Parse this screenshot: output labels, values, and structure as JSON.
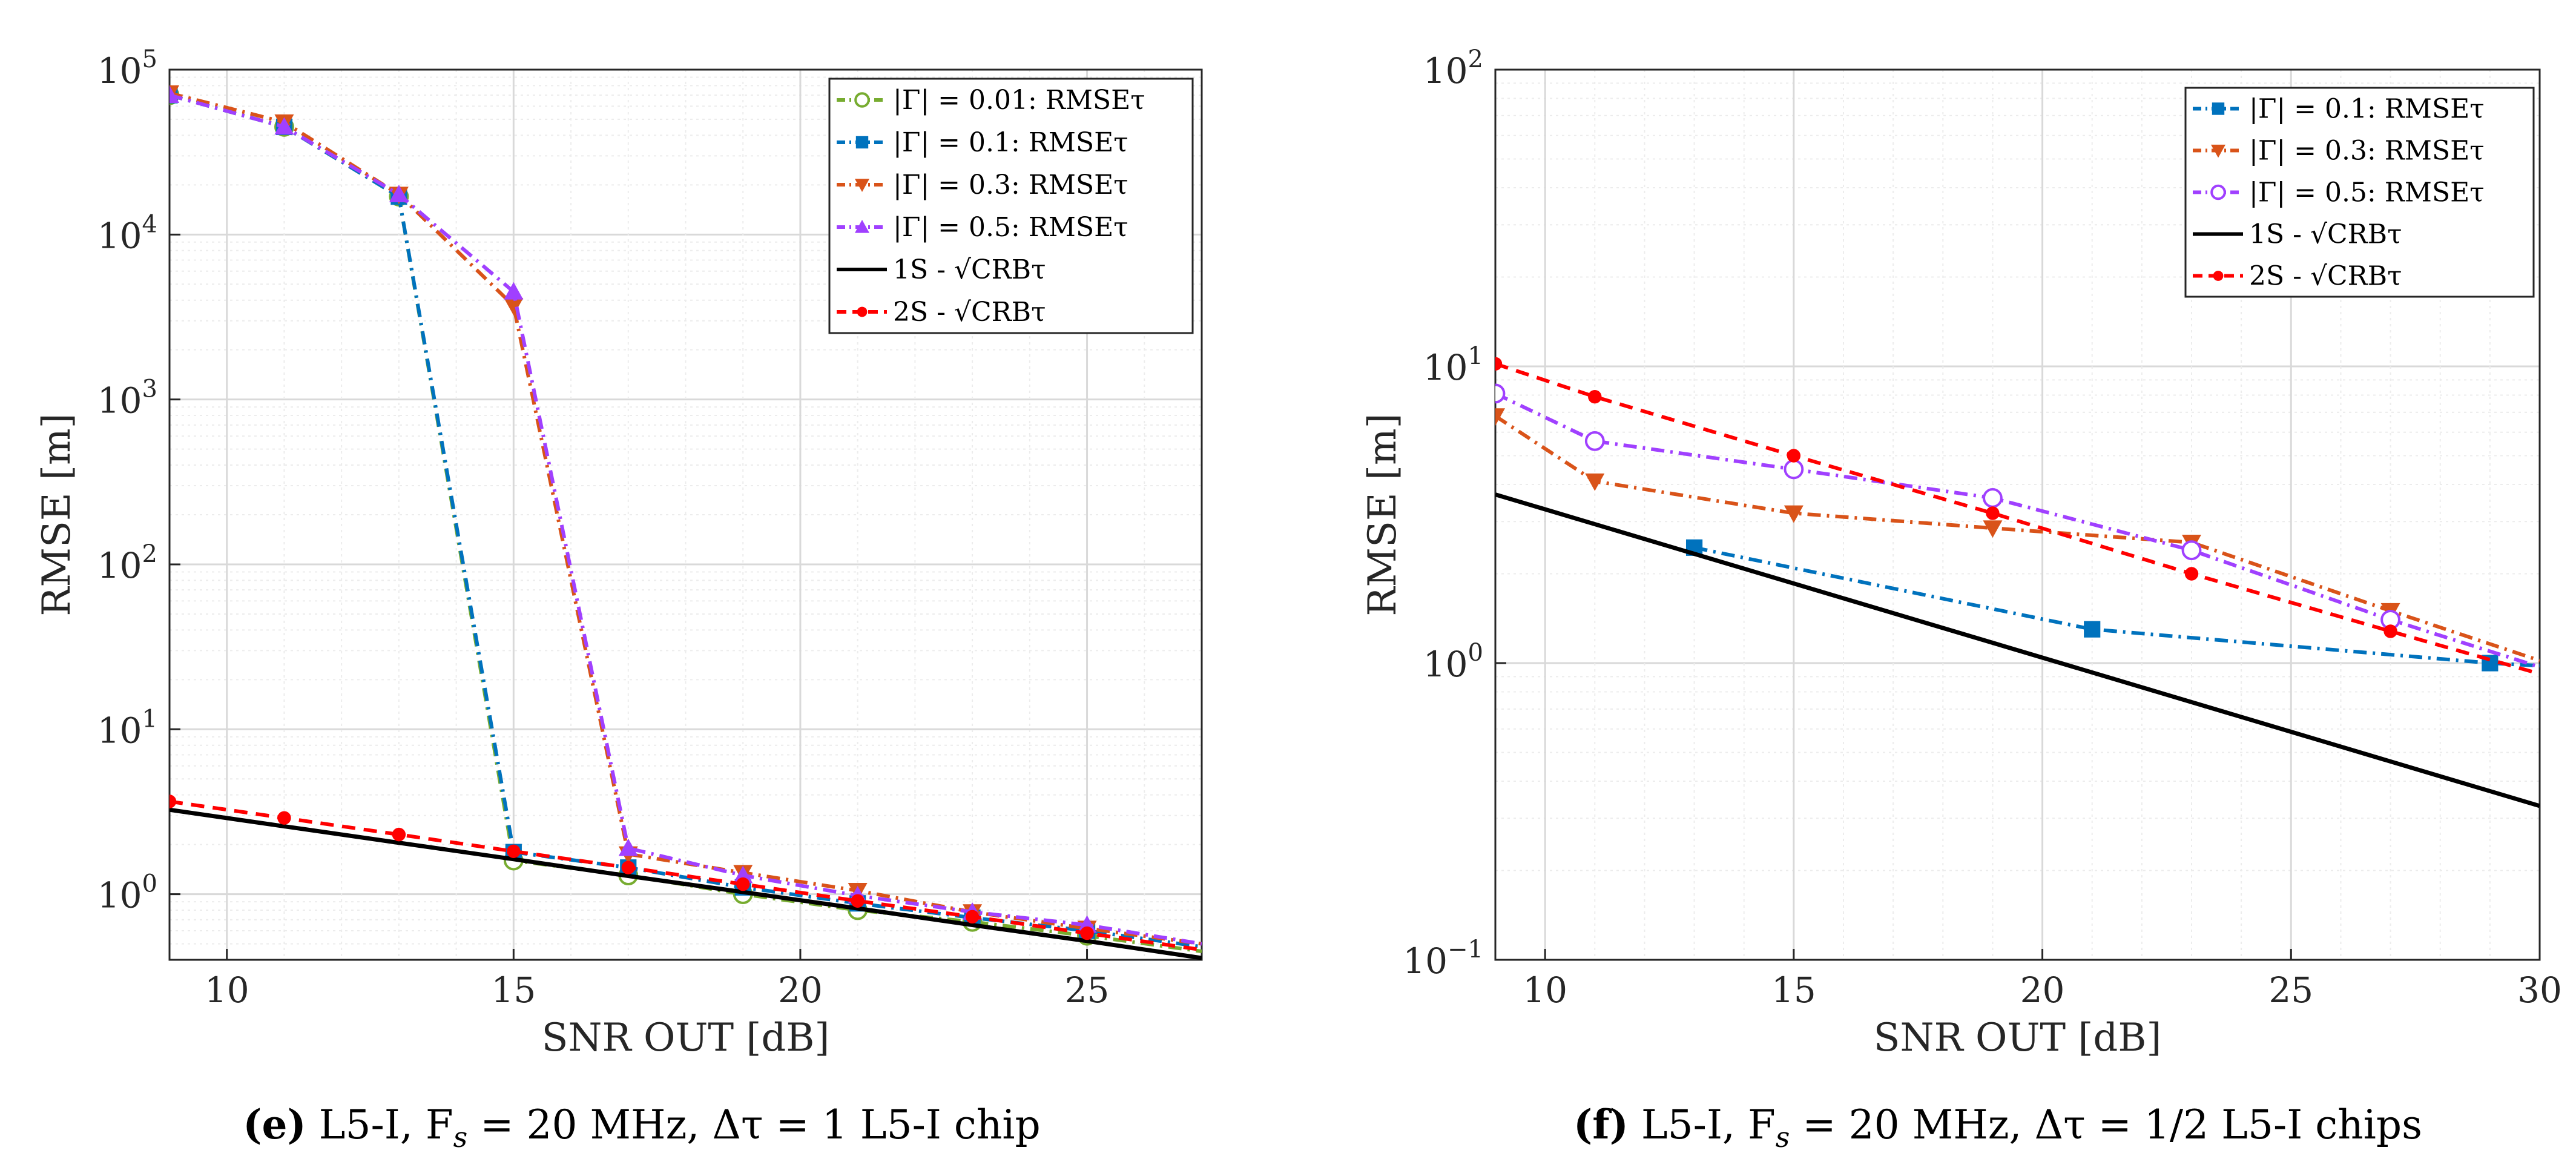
{
  "chart_data": [
    {
      "type": "line",
      "xscale": "linear",
      "yscale": "log",
      "xlim": [
        9,
        27
      ],
      "ylim": [
        0.4,
        100000
      ],
      "xticks": [
        10,
        15,
        20,
        25
      ],
      "yticks": [
        1,
        10,
        100,
        1000,
        10000,
        100000
      ],
      "ytick_labels": [
        {
          "base": "10",
          "exp": "0"
        },
        {
          "base": "10",
          "exp": "1"
        },
        {
          "base": "10",
          "exp": "2"
        },
        {
          "base": "10",
          "exp": "3"
        },
        {
          "base": "10",
          "exp": "4"
        },
        {
          "base": "10",
          "exp": "5"
        }
      ],
      "xlabel": "SNR OUT [dB]",
      "ylabel": "RMSE [m]",
      "grid": true,
      "legend_position": "top-right",
      "caption": {
        "letter": "(e)",
        "text": " L5-I, F",
        "sub": "s",
        "rest": " = 20 MHz, Δτ = 1 L5-I chip"
      },
      "series": [
        {
          "name": "|Γ| = 0.01:  RMSEτ",
          "color": "#77AC30",
          "dash": "dashdot",
          "marker": "circle-open",
          "x": [
            9,
            11,
            13,
            15,
            17,
            19,
            21,
            23,
            25,
            27
          ],
          "y": [
            70000,
            45000,
            17000,
            1.6,
            1.3,
            1.0,
            0.8,
            0.68,
            0.56,
            0.45
          ]
        },
        {
          "name": "|Γ| = 0.1:  RMSEτ",
          "color": "#0072BD",
          "dash": "dashdot",
          "marker": "square",
          "x": [
            9,
            11,
            13,
            15,
            17,
            19,
            21,
            23,
            25,
            27
          ],
          "y": [
            70000,
            45000,
            17000,
            1.8,
            1.45,
            1.1,
            0.88,
            0.72,
            0.6,
            0.48
          ]
        },
        {
          "name": "|Γ| = 0.3:  RMSEτ",
          "color": "#D95319",
          "dash": "dashdot",
          "marker": "triangle-down",
          "x": [
            9,
            11,
            13,
            15,
            17,
            19,
            21,
            23,
            25,
            27
          ],
          "y": [
            72000,
            48000,
            17500,
            3700,
            1.75,
            1.35,
            1.05,
            0.78,
            0.62,
            0.5
          ]
        },
        {
          "name": "|Γ| = 0.5:  RMSEτ",
          "color": "#A040FF",
          "dash": "dashdot",
          "marker": "triangle-up",
          "x": [
            9,
            11,
            13,
            15,
            17,
            19,
            21,
            23,
            25,
            27
          ],
          "y": [
            70000,
            45000,
            17500,
            4500,
            1.9,
            1.3,
            0.98,
            0.78,
            0.65,
            0.5
          ]
        },
        {
          "name": "1S - √CRBτ",
          "color": "#000000",
          "dash": "solid",
          "marker": "none",
          "x": [
            9,
            11,
            13,
            15,
            17,
            19,
            21,
            23,
            25,
            27
          ],
          "y": [
            3.25,
            2.58,
            2.05,
            1.63,
            1.29,
            1.03,
            0.82,
            0.65,
            0.52,
            0.41
          ]
        },
        {
          "name": "2S - √CRBτ",
          "color": "#FF0000",
          "dash": "dashed",
          "marker": "dot",
          "x": [
            9,
            11,
            13,
            15,
            17,
            19,
            21,
            23,
            25,
            27
          ],
          "y": [
            3.65,
            2.9,
            2.3,
            1.82,
            1.45,
            1.15,
            0.91,
            0.73,
            0.58,
            0.46
          ]
        }
      ]
    },
    {
      "type": "line",
      "xscale": "linear",
      "yscale": "log",
      "xlim": [
        9,
        30
      ],
      "ylim": [
        0.1,
        100
      ],
      "xticks": [
        10,
        15,
        20,
        25,
        30
      ],
      "yticks": [
        0.1,
        1,
        10,
        100
      ],
      "ytick_labels": [
        {
          "base": "10",
          "exp": "−1"
        },
        {
          "base": "10",
          "exp": "0"
        },
        {
          "base": "10",
          "exp": "1"
        },
        {
          "base": "10",
          "exp": "2"
        }
      ],
      "xlabel": "SNR OUT [dB]",
      "ylabel": "RMSE [m]",
      "grid": true,
      "legend_position": "top-right",
      "caption": {
        "letter": "(f)",
        "text": " L5-I, F",
        "sub": "s",
        "rest": " = 20 MHz, Δτ = 1/2 L5-I chips"
      },
      "series": [
        {
          "name": "|Γ| = 0.1:  RMSEτ",
          "color": "#0072BD",
          "dash": "dashdot",
          "marker": "square",
          "x": [
            13,
            21,
            29,
            30
          ],
          "y": [
            2.45,
            1.3,
            1.0,
            0.98
          ]
        },
        {
          "name": "|Γ| = 0.3:  RMSEτ",
          "color": "#D95319",
          "dash": "dashdot",
          "marker": "triangle-down",
          "x": [
            9,
            11,
            15,
            19,
            23,
            27,
            30
          ],
          "y": [
            6.8,
            4.1,
            3.2,
            2.85,
            2.55,
            1.5,
            1.02
          ]
        },
        {
          "name": "|Γ| = 0.5:  RMSEτ",
          "color": "#A040FF",
          "dash": "dashdot",
          "marker": "circle-open",
          "x": [
            9,
            11,
            15,
            19,
            23,
            27,
            30
          ],
          "y": [
            8.1,
            5.6,
            4.5,
            3.6,
            2.4,
            1.4,
            0.97
          ]
        },
        {
          "name": "1S - √CRBτ",
          "color": "#000000",
          "dash": "solid",
          "marker": "none",
          "x": [
            9,
            30
          ],
          "y": [
            3.7,
            0.33
          ]
        },
        {
          "name": "2S - √CRBτ",
          "color": "#FF0000",
          "dash": "dashed",
          "marker": "dot",
          "x": [
            9,
            11,
            15,
            19,
            23,
            27,
            30
          ],
          "y": [
            10.2,
            7.9,
            5.0,
            3.2,
            2.0,
            1.28,
            0.92
          ]
        }
      ]
    }
  ]
}
